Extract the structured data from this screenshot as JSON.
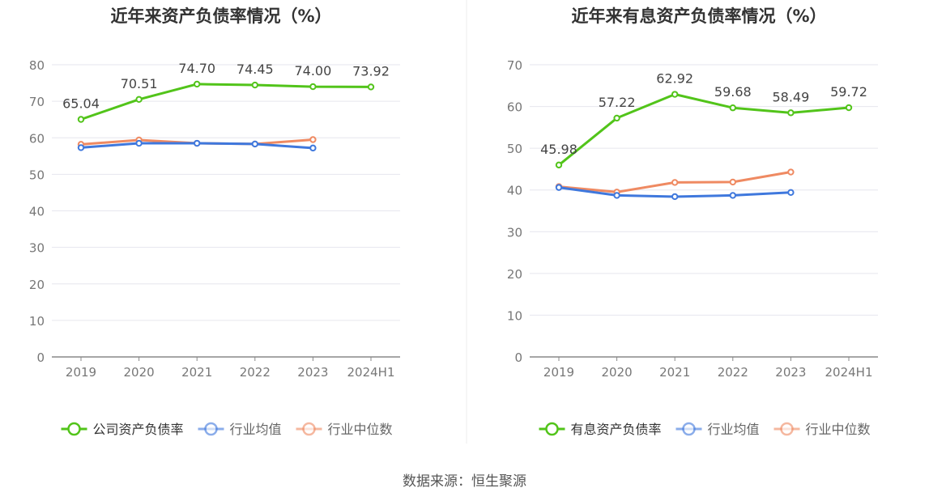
{
  "source": "数据来源：恒生聚源",
  "chart_data": [
    {
      "type": "line",
      "title": "近年来资产负债率情况（%）",
      "categories": [
        "2019",
        "2020",
        "2021",
        "2022",
        "2023",
        "2024H1"
      ],
      "ylim": [
        0,
        80
      ],
      "yticks": [
        0,
        10,
        20,
        30,
        40,
        50,
        60,
        70,
        80
      ],
      "grid": true,
      "legend_position": "bottom",
      "series": [
        {
          "name": "公司资产负债率",
          "color": "#52c41a",
          "labeled": true,
          "values": [
            65.04,
            70.51,
            74.7,
            74.45,
            74.0,
            73.92
          ],
          "labels": [
            "65.04",
            "70.51",
            "74.70",
            "74.45",
            "74.00",
            "73.92"
          ]
        },
        {
          "name": "行业均值",
          "color": "#3f78dd",
          "labeled": false,
          "values": [
            57.3,
            58.5,
            58.5,
            58.3,
            57.2,
            null
          ]
        },
        {
          "name": "行业中位数",
          "color": "#ef8a62",
          "labeled": false,
          "values": [
            58.2,
            59.4,
            58.5,
            58.3,
            59.5,
            null
          ]
        }
      ]
    },
    {
      "type": "line",
      "title": "近年来有息资产负债率情况（%）",
      "categories": [
        "2019",
        "2020",
        "2021",
        "2022",
        "2023",
        "2024H1"
      ],
      "ylim": [
        0,
        70
      ],
      "yticks": [
        0,
        10,
        20,
        30,
        40,
        50,
        60,
        70
      ],
      "grid": true,
      "legend_position": "bottom",
      "series": [
        {
          "name": "有息资产负债率",
          "color": "#52c41a",
          "labeled": true,
          "values": [
            45.98,
            57.22,
            62.92,
            59.68,
            58.49,
            59.72
          ],
          "labels": [
            "45.98",
            "57.22",
            "62.92",
            "59.68",
            "58.49",
            "59.72"
          ]
        },
        {
          "name": "行业均值",
          "color": "#3f78dd",
          "labeled": false,
          "values": [
            40.6,
            38.7,
            38.4,
            38.7,
            39.4,
            null
          ]
        },
        {
          "name": "行业中位数",
          "color": "#ef8a62",
          "labeled": false,
          "values": [
            40.8,
            39.5,
            41.8,
            41.9,
            44.3,
            null
          ]
        }
      ]
    }
  ]
}
